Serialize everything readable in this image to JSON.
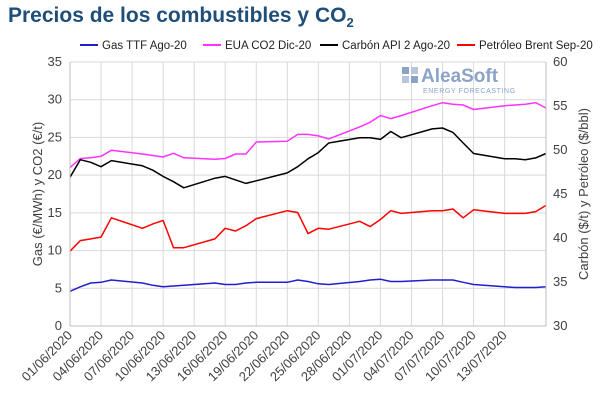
{
  "title_main": "Precios de los combustibles y CO",
  "title_sub": "2",
  "logo": {
    "name": "AleaSoft",
    "tagline": "ENERGY FORECASTING"
  },
  "chart_data": {
    "type": "line",
    "ylabel_left": "Gas (€/MWh) y CO2 (€/t)",
    "ylabel_right": "Carbón ($/t) y Petróleo ($/bbl)",
    "y_left_range": [
      0,
      35
    ],
    "y_left_ticks": [
      "0",
      "5",
      "10",
      "15",
      "20",
      "25",
      "30",
      "35"
    ],
    "y_right_range": [
      30,
      60
    ],
    "y_right_ticks": [
      "30",
      "35",
      "40",
      "45",
      "50",
      "55",
      "60"
    ],
    "x_range": [
      "2020-06-01",
      "2020-07-17"
    ],
    "x_ticks": [
      "01/06/2020",
      "04/06/2020",
      "07/06/2020",
      "10/06/2020",
      "13/06/2020",
      "16/06/2020",
      "19/06/2020",
      "22/06/2020",
      "25/06/2020",
      "28/06/2020",
      "01/07/2020",
      "04/07/2020",
      "07/07/2020",
      "10/07/2020",
      "13/07/2020"
    ],
    "grid": true,
    "legend_position": "top",
    "series": [
      {
        "name": "Gas TTF Ago-20",
        "axis": "left",
        "color": "#1f1fcf",
        "points": [
          [
            "2020-06-01",
            4.6
          ],
          [
            "2020-06-02",
            5.2
          ],
          [
            "2020-06-03",
            5.7
          ],
          [
            "2020-06-04",
            5.8
          ],
          [
            "2020-06-05",
            6.1
          ],
          [
            "2020-06-08",
            5.7
          ],
          [
            "2020-06-09",
            5.4
          ],
          [
            "2020-06-10",
            5.2
          ],
          [
            "2020-06-11",
            5.3
          ],
          [
            "2020-06-12",
            5.4
          ],
          [
            "2020-06-15",
            5.7
          ],
          [
            "2020-06-16",
            5.5
          ],
          [
            "2020-06-17",
            5.5
          ],
          [
            "2020-06-18",
            5.7
          ],
          [
            "2020-06-19",
            5.8
          ],
          [
            "2020-06-22",
            5.8
          ],
          [
            "2020-06-23",
            6.1
          ],
          [
            "2020-06-24",
            5.9
          ],
          [
            "2020-06-25",
            5.6
          ],
          [
            "2020-06-26",
            5.5
          ],
          [
            "2020-06-29",
            5.9
          ],
          [
            "2020-06-30",
            6.1
          ],
          [
            "2020-07-01",
            6.2
          ],
          [
            "2020-07-02",
            5.9
          ],
          [
            "2020-07-03",
            5.9
          ],
          [
            "2020-07-06",
            6.1
          ],
          [
            "2020-07-07",
            6.1
          ],
          [
            "2020-07-08",
            6.1
          ],
          [
            "2020-07-09",
            5.8
          ],
          [
            "2020-07-10",
            5.5
          ],
          [
            "2020-07-13",
            5.2
          ],
          [
            "2020-07-14",
            5.1
          ],
          [
            "2020-07-15",
            5.1
          ],
          [
            "2020-07-16",
            5.1
          ],
          [
            "2020-07-17",
            5.2
          ]
        ]
      },
      {
        "name": "EUA CO2 Dic-20",
        "axis": "left",
        "color": "#ff33ff",
        "points": [
          [
            "2020-06-01",
            21.0
          ],
          [
            "2020-06-02",
            22.2
          ],
          [
            "2020-06-03",
            22.3
          ],
          [
            "2020-06-04",
            22.5
          ],
          [
            "2020-06-05",
            23.3
          ],
          [
            "2020-06-08",
            22.8
          ],
          [
            "2020-06-09",
            22.6
          ],
          [
            "2020-06-10",
            22.4
          ],
          [
            "2020-06-11",
            22.9
          ],
          [
            "2020-06-12",
            22.3
          ],
          [
            "2020-06-15",
            22.1
          ],
          [
            "2020-06-16",
            22.2
          ],
          [
            "2020-06-17",
            22.8
          ],
          [
            "2020-06-18",
            22.8
          ],
          [
            "2020-06-19",
            24.4
          ],
          [
            "2020-06-22",
            24.5
          ],
          [
            "2020-06-23",
            25.4
          ],
          [
            "2020-06-24",
            25.4
          ],
          [
            "2020-06-25",
            25.2
          ],
          [
            "2020-06-26",
            24.8
          ],
          [
            "2020-06-29",
            26.4
          ],
          [
            "2020-06-30",
            27.0
          ],
          [
            "2020-07-01",
            27.9
          ],
          [
            "2020-07-02",
            27.5
          ],
          [
            "2020-07-03",
            27.9
          ],
          [
            "2020-07-06",
            29.2
          ],
          [
            "2020-07-07",
            29.6
          ],
          [
            "2020-07-08",
            29.4
          ],
          [
            "2020-07-09",
            29.3
          ],
          [
            "2020-07-10",
            28.7
          ],
          [
            "2020-07-13",
            29.2
          ],
          [
            "2020-07-14",
            29.3
          ],
          [
            "2020-07-15",
            29.4
          ],
          [
            "2020-07-16",
            29.6
          ],
          [
            "2020-07-17",
            28.9
          ]
        ]
      },
      {
        "name": "Carbón API 2 Ago-20",
        "axis": "right",
        "color": "#000000",
        "points": [
          [
            "2020-06-01",
            46.9
          ],
          [
            "2020-06-02",
            48.9
          ],
          [
            "2020-06-03",
            48.6
          ],
          [
            "2020-06-04",
            48.1
          ],
          [
            "2020-06-05",
            48.8
          ],
          [
            "2020-06-08",
            48.2
          ],
          [
            "2020-06-09",
            47.7
          ],
          [
            "2020-06-10",
            47.0
          ],
          [
            "2020-06-11",
            46.4
          ],
          [
            "2020-06-12",
            45.7
          ],
          [
            "2020-06-15",
            46.8
          ],
          [
            "2020-06-16",
            47.0
          ],
          [
            "2020-06-17",
            46.6
          ],
          [
            "2020-06-18",
            46.2
          ],
          [
            "2020-06-19",
            46.5
          ],
          [
            "2020-06-22",
            47.4
          ],
          [
            "2020-06-23",
            48.1
          ],
          [
            "2020-06-24",
            49.0
          ],
          [
            "2020-06-25",
            49.7
          ],
          [
            "2020-06-26",
            50.8
          ],
          [
            "2020-06-29",
            51.4
          ],
          [
            "2020-06-30",
            51.4
          ],
          [
            "2020-07-01",
            51.2
          ],
          [
            "2020-07-02",
            52.1
          ],
          [
            "2020-07-03",
            51.4
          ],
          [
            "2020-07-06",
            52.4
          ],
          [
            "2020-07-07",
            52.5
          ],
          [
            "2020-07-08",
            52.0
          ],
          [
            "2020-07-09",
            50.8
          ],
          [
            "2020-07-10",
            49.6
          ],
          [
            "2020-07-13",
            49.0
          ],
          [
            "2020-07-14",
            49.0
          ],
          [
            "2020-07-15",
            48.9
          ],
          [
            "2020-07-16",
            49.1
          ],
          [
            "2020-07-17",
            49.6
          ]
        ]
      },
      {
        "name": "Petróleo Brent Sep-20",
        "axis": "right",
        "color": "#ff0000",
        "points": [
          [
            "2020-06-01",
            38.5
          ],
          [
            "2020-06-02",
            39.7
          ],
          [
            "2020-06-03",
            39.9
          ],
          [
            "2020-06-04",
            40.1
          ],
          [
            "2020-06-05",
            42.3
          ],
          [
            "2020-06-08",
            41.1
          ],
          [
            "2020-06-09",
            41.6
          ],
          [
            "2020-06-10",
            42.0
          ],
          [
            "2020-06-11",
            38.9
          ],
          [
            "2020-06-12",
            38.9
          ],
          [
            "2020-06-15",
            39.9
          ],
          [
            "2020-06-16",
            41.1
          ],
          [
            "2020-06-17",
            40.8
          ],
          [
            "2020-06-18",
            41.4
          ],
          [
            "2020-06-19",
            42.2
          ],
          [
            "2020-06-22",
            43.1
          ],
          [
            "2020-06-23",
            42.9
          ],
          [
            "2020-06-24",
            40.5
          ],
          [
            "2020-06-25",
            41.1
          ],
          [
            "2020-06-26",
            41.0
          ],
          [
            "2020-06-29",
            41.9
          ],
          [
            "2020-06-30",
            41.3
          ],
          [
            "2020-07-01",
            42.1
          ],
          [
            "2020-07-02",
            43.1
          ],
          [
            "2020-07-03",
            42.8
          ],
          [
            "2020-07-06",
            43.1
          ],
          [
            "2020-07-07",
            43.1
          ],
          [
            "2020-07-08",
            43.3
          ],
          [
            "2020-07-09",
            42.3
          ],
          [
            "2020-07-10",
            43.2
          ],
          [
            "2020-07-13",
            42.8
          ],
          [
            "2020-07-14",
            42.8
          ],
          [
            "2020-07-15",
            42.8
          ],
          [
            "2020-07-16",
            43.0
          ],
          [
            "2020-07-17",
            43.7
          ]
        ]
      }
    ]
  }
}
